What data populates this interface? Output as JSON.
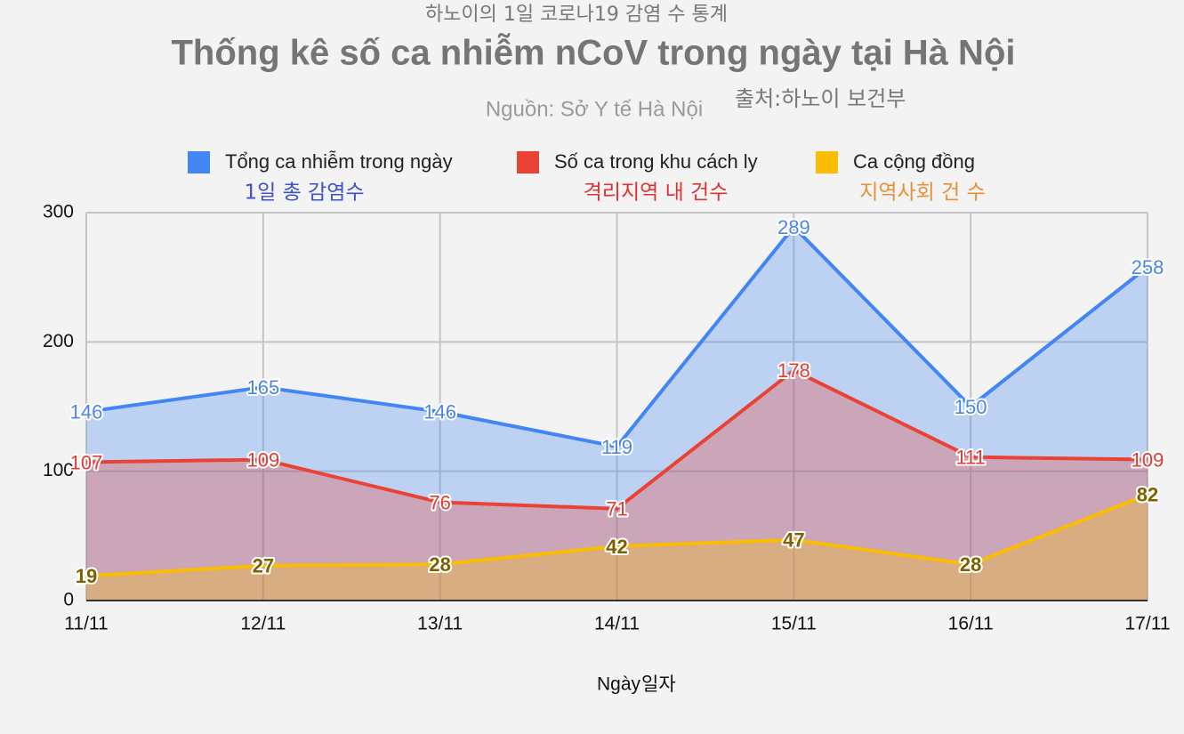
{
  "chart_data": {
    "type": "area",
    "title_ko": "하노이의 1일 코로나19 감염 수 통계",
    "title": "Thống kê số ca nhiễm nCoV trong ngày tại Hà Nội",
    "subtitle": "Nguồn: Sở Y tế Hà Nội",
    "subtitle_ko": "출처:하노이 보건부",
    "xlabel": "Ngày",
    "xlabel_ko": "일자",
    "categories": [
      "11/11",
      "12/11",
      "13/11",
      "14/11",
      "15/11",
      "16/11",
      "17/11"
    ],
    "series": [
      {
        "name": "Tổng ca nhiễm trong ngày",
        "name_ko": "1일 총 감염수",
        "color": "#4285f4",
        "label_color": "#4a86e8",
        "values": [
          146,
          165,
          146,
          119,
          289,
          150,
          258
        ]
      },
      {
        "name": "Số ca trong khu cách ly",
        "name_ko": "격리지역 내 건수",
        "color": "#ea4335",
        "label_color": "#e03c31",
        "values": [
          107,
          109,
          76,
          71,
          178,
          111,
          109
        ]
      },
      {
        "name": "Ca cộng đồng",
        "name_ko": "지역사회 건 수",
        "color": "#fbbc04",
        "label_color": "#7f6000",
        "values": [
          19,
          27,
          28,
          42,
          47,
          28,
          82
        ]
      }
    ],
    "ylim": [
      0,
      300
    ],
    "yticks": [
      0,
      100,
      200,
      300
    ],
    "grid": true
  }
}
